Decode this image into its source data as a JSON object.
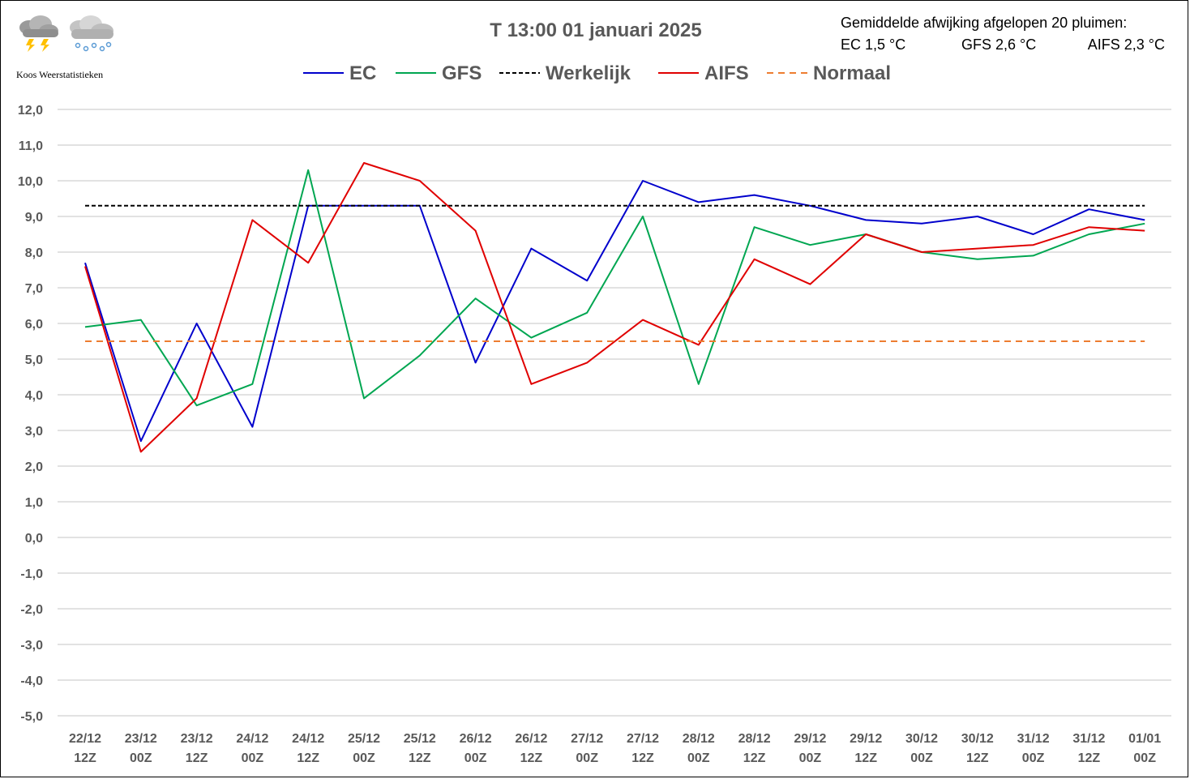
{
  "brand": "Koos Weerstatistieken",
  "icons": [
    "thunderstorm-cloud-icon",
    "snow-cloud-icon"
  ],
  "deviation": {
    "heading": "Gemiddelde afwijking afgelopen 20 pluimen:",
    "ec": "EC 1,5 °C",
    "gfs": "GFS 2,6 °C",
    "aifs": "AIFS 2,3 °C"
  },
  "chart_data": {
    "type": "line",
    "title": "T 13:00  01 januari 2025",
    "x": [
      "22/12 12Z",
      "23/12 00Z",
      "23/12 12Z",
      "24/12 00Z",
      "24/12 12Z",
      "25/12 00Z",
      "25/12 12Z",
      "26/12 00Z",
      "26/12 12Z",
      "27/12 00Z",
      "27/12 12Z",
      "28/12 00Z",
      "28/12 12Z",
      "29/12 00Z",
      "29/12 12Z",
      "30/12 00Z",
      "30/12 12Z",
      "31/12 00Z",
      "31/12 12Z",
      "01/01 00Z"
    ],
    "ylim": [
      -5,
      12
    ],
    "yticks": [
      "12,0",
      "11,0",
      "10,0",
      "9,0",
      "8,0",
      "7,0",
      "6,0",
      "5,0",
      "4,0",
      "3,0",
      "2,0",
      "1,0",
      "0,0",
      "-1,0",
      "-2,0",
      "-3,0",
      "-4,0",
      "-5,0"
    ],
    "grid": true,
    "legend_position": "top",
    "series": [
      {
        "name": "EC",
        "color": "#0000cc",
        "dash": false,
        "values": [
          7.7,
          2.7,
          6.0,
          3.1,
          9.3,
          9.3,
          9.3,
          4.9,
          8.1,
          7.2,
          10.0,
          9.4,
          9.6,
          9.3,
          8.9,
          8.8,
          9.0,
          8.5,
          9.2,
          8.9
        ]
      },
      {
        "name": "GFS",
        "color": "#00a651",
        "dash": false,
        "values": [
          5.9,
          6.1,
          3.7,
          4.3,
          10.3,
          3.9,
          5.1,
          6.7,
          5.6,
          6.3,
          9.0,
          4.3,
          8.7,
          8.2,
          8.5,
          8.0,
          7.8,
          7.9,
          8.5,
          8.8
        ]
      },
      {
        "name": "Werkelijk",
        "color": "#000000",
        "dash": true,
        "values": [
          9.3,
          9.3,
          9.3,
          9.3,
          9.3,
          9.3,
          9.3,
          9.3,
          9.3,
          9.3,
          9.3,
          9.3,
          9.3,
          9.3,
          9.3,
          9.3,
          9.3,
          9.3,
          9.3,
          9.3
        ]
      },
      {
        "name": "AIFS",
        "color": "#e00000",
        "dash": false,
        "values": [
          7.6,
          2.4,
          3.9,
          8.9,
          7.7,
          10.5,
          10.0,
          8.6,
          4.3,
          4.9,
          6.1,
          5.4,
          7.8,
          7.1,
          8.5,
          8.0,
          8.1,
          8.2,
          8.7,
          8.6
        ]
      },
      {
        "name": "Normaal",
        "color": "#ed7d31",
        "dash": true,
        "values": [
          5.5,
          5.5,
          5.5,
          5.5,
          5.5,
          5.5,
          5.5,
          5.5,
          5.5,
          5.5,
          5.5,
          5.5,
          5.5,
          5.5,
          5.5,
          5.5,
          5.5,
          5.5,
          5.5,
          5.5
        ]
      }
    ]
  }
}
